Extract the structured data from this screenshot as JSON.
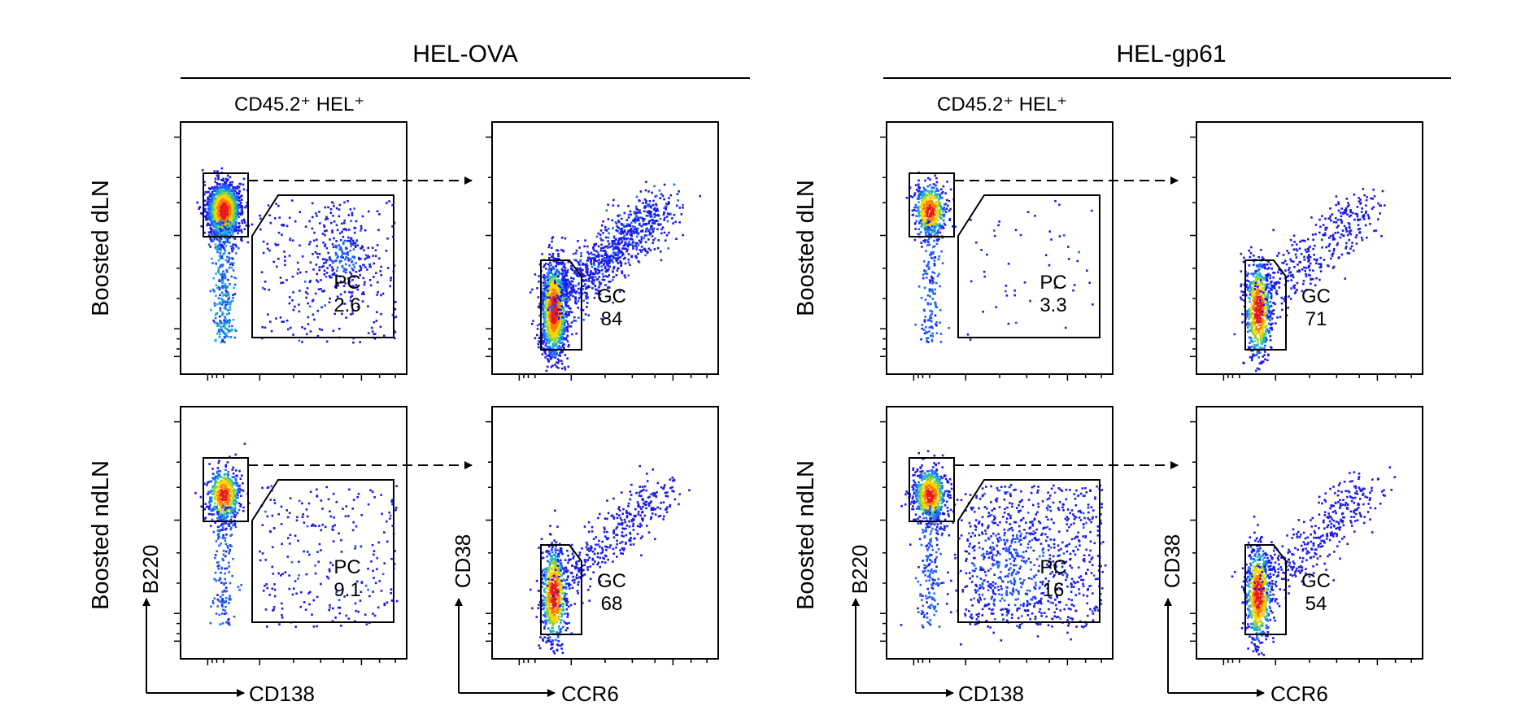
{
  "figure": {
    "groups": [
      {
        "title": "HEL-OVA",
        "subtitle": "CD45.2⁺ HEL⁺"
      },
      {
        "title": "HEL-gp61",
        "subtitle": "CD45.2⁺ HEL⁺"
      }
    ],
    "rows": [
      "Boosted dLN",
      "Boosted ndLN"
    ],
    "axes": {
      "left_x": "CD138",
      "left_y": "B220",
      "right_x": "CCR6",
      "right_y": "CD38"
    }
  },
  "chart_data": [
    {
      "type": "scatter",
      "panel": "HEL-OVA Boosted dLN CD138 vs B220",
      "group": "HEL-OVA",
      "row": "Boosted dLN",
      "xlabel": "CD138",
      "ylabel": "B220",
      "gate": "PC",
      "gate_value": "2.6",
      "scale": "log"
    },
    {
      "type": "scatter",
      "panel": "HEL-OVA Boosted dLN CCR6 vs CD38",
      "group": "HEL-OVA",
      "row": "Boosted dLN",
      "xlabel": "CCR6",
      "ylabel": "CD38",
      "gate": "GC",
      "gate_value": "84",
      "scale": "log"
    },
    {
      "type": "scatter",
      "panel": "HEL-gp61 Boosted dLN CD138 vs B220",
      "group": "HEL-gp61",
      "row": "Boosted dLN",
      "xlabel": "CD138",
      "ylabel": "B220",
      "gate": "PC",
      "gate_value": "3.3",
      "scale": "log"
    },
    {
      "type": "scatter",
      "panel": "HEL-gp61 Boosted dLN CCR6 vs CD38",
      "group": "HEL-gp61",
      "row": "Boosted dLN",
      "xlabel": "CCR6",
      "ylabel": "CD38",
      "gate": "GC",
      "gate_value": "71",
      "scale": "log"
    },
    {
      "type": "scatter",
      "panel": "HEL-OVA Boosted ndLN CD138 vs B220",
      "group": "HEL-OVA",
      "row": "Boosted ndLN",
      "xlabel": "CD138",
      "ylabel": "B220",
      "gate": "PC",
      "gate_value": "9.1",
      "scale": "log"
    },
    {
      "type": "scatter",
      "panel": "HEL-OVA Boosted ndLN CCR6 vs CD38",
      "group": "HEL-OVA",
      "row": "Boosted ndLN",
      "xlabel": "CCR6",
      "ylabel": "CD38",
      "gate": "GC",
      "gate_value": "68",
      "scale": "log"
    },
    {
      "type": "scatter",
      "panel": "HEL-gp61 Boosted ndLN CD138 vs B220",
      "group": "HEL-gp61",
      "row": "Boosted ndLN",
      "xlabel": "CD138",
      "ylabel": "B220",
      "gate": "PC",
      "gate_value": "16",
      "scale": "log"
    },
    {
      "type": "scatter",
      "panel": "HEL-gp61 Boosted ndLN CCR6 vs CD38",
      "group": "HEL-gp61",
      "row": "Boosted ndLN",
      "xlabel": "CCR6",
      "ylabel": "CD38",
      "gate": "GC",
      "gate_value": "54",
      "scale": "log"
    }
  ]
}
